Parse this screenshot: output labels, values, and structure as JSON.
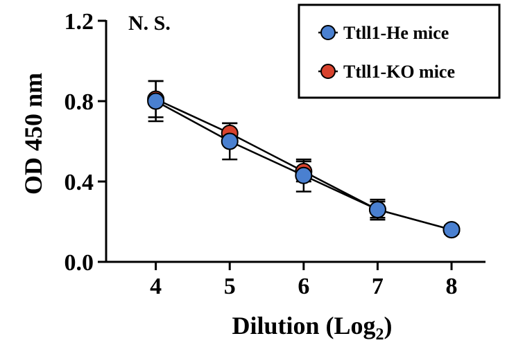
{
  "chart_data": {
    "type": "line",
    "xlabel": "Dilution (Log",
    "xlabel_subscript": "2",
    "xlabel_suffix": ")",
    "ylabel": "OD 450 nm",
    "annotation": "N. S.",
    "x": [
      4,
      5,
      6,
      7,
      8
    ],
    "x_tick_labels": [
      "4",
      "5",
      "6",
      "7",
      "8"
    ],
    "y_ticks": [
      0.0,
      0.4,
      0.8,
      1.2
    ],
    "y_tick_labels": [
      "0.0",
      "0.4",
      "0.8",
      "1.2"
    ],
    "xlim": [
      3.3,
      8.6
    ],
    "ylim": [
      0.0,
      1.2
    ],
    "grid": false,
    "legend_position": "top-right",
    "series": [
      {
        "name": "Ttll1-KO mice",
        "color": "#d8432e",
        "values": [
          0.81,
          0.64,
          0.45,
          0.26,
          0.16
        ],
        "error": [
          0.09,
          0.05,
          0.05,
          0.05,
          0.02
        ]
      },
      {
        "name": "Ttll1-He mice",
        "color": "#4a80d0",
        "values": [
          0.8,
          0.6,
          0.43,
          0.26,
          0.16
        ],
        "error": [
          0.1,
          0.09,
          0.08,
          0.04,
          0.02
        ]
      }
    ],
    "legend_order": [
      1,
      0
    ]
  }
}
